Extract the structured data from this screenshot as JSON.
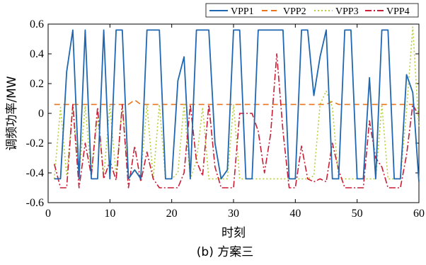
{
  "chart_data": {
    "type": "line",
    "xlabel": "时刻",
    "ylabel": "调频功率/MW",
    "caption": "(b) 方案三",
    "xlim": [
      0,
      60
    ],
    "ylim": [
      -0.6,
      0.6
    ],
    "xticks": [
      0,
      10,
      20,
      30,
      40,
      50,
      60
    ],
    "yticks": [
      -0.6,
      -0.4,
      -0.2,
      0,
      0.2,
      0.4,
      0.6
    ],
    "legend_position": "top",
    "x": [
      1,
      2,
      3,
      4,
      5,
      6,
      7,
      8,
      9,
      10,
      11,
      12,
      13,
      14,
      15,
      16,
      17,
      18,
      19,
      20,
      21,
      22,
      23,
      24,
      25,
      26,
      27,
      28,
      29,
      30,
      31,
      32,
      33,
      34,
      35,
      36,
      37,
      38,
      39,
      40,
      41,
      42,
      43,
      44,
      45,
      46,
      47,
      48,
      49,
      50,
      51,
      52,
      53,
      54,
      55,
      56,
      57,
      58,
      59,
      60
    ],
    "series": [
      {
        "name": "VPP1",
        "color": "#1f67b1",
        "dash": "",
        "values": [
          -0.44,
          -0.44,
          0.28,
          0.56,
          -0.44,
          0.56,
          -0.44,
          -0.44,
          0.56,
          -0.44,
          0.56,
          0.56,
          -0.44,
          -0.38,
          -0.44,
          0.56,
          0.56,
          0.56,
          -0.44,
          -0.44,
          0.22,
          0.38,
          -0.44,
          0.56,
          0.56,
          0.56,
          -0.2,
          -0.44,
          -0.38,
          0.56,
          0.56,
          -0.44,
          -0.44,
          0.56,
          0.56,
          0.56,
          0.56,
          0.56,
          -0.44,
          -0.44,
          0.56,
          0.56,
          0.12,
          0.38,
          0.56,
          -0.44,
          -0.44,
          0.56,
          0.56,
          -0.44,
          -0.44,
          0.24,
          -0.44,
          0.56,
          0.56,
          -0.44,
          -0.44,
          0.26,
          0.14,
          -0.46
        ]
      },
      {
        "name": "VPP2",
        "color": "#e8741d",
        "dash": "8,5",
        "values": [
          0.06,
          0.06,
          0.06,
          0.06,
          0.06,
          0.06,
          0.06,
          0.06,
          0.06,
          0.06,
          0.06,
          0.06,
          0.06,
          0.09,
          0.06,
          0.06,
          0.06,
          0.06,
          0.06,
          0.06,
          0.06,
          0.06,
          0.06,
          0.06,
          0.06,
          0.06,
          0.06,
          0.06,
          0.06,
          0.06,
          0.06,
          0.06,
          0.06,
          0.06,
          0.06,
          0.06,
          0.06,
          0.06,
          0.06,
          0.06,
          0.06,
          0.06,
          0.06,
          0.06,
          0.06,
          0.08,
          0.06,
          0.06,
          0.06,
          0.06,
          0.06,
          0.06,
          0.06,
          0.06,
          0.06,
          0.06,
          0.06,
          0.06,
          0.06,
          0.06
        ]
      },
      {
        "name": "VPP3",
        "color": "#b5cf38",
        "dash": "2,3",
        "values": [
          -0.44,
          0.04,
          -0.42,
          0.06,
          -0.42,
          0.05,
          -0.42,
          -0.02,
          -0.42,
          0.05,
          -0.42,
          0.06,
          -0.43,
          -0.38,
          -0.42,
          0.06,
          -0.44,
          0.06,
          -0.44,
          -0.44,
          -0.4,
          0.06,
          -0.44,
          -0.32,
          0.04,
          -0.44,
          -0.44,
          -0.44,
          -0.44,
          0.06,
          -0.44,
          -0.44,
          -0.44,
          -0.44,
          -0.44,
          -0.44,
          -0.44,
          -0.44,
          -0.44,
          -0.44,
          -0.44,
          -0.44,
          -0.42,
          0.06,
          0.15,
          0.04,
          -0.44,
          -0.44,
          -0.44,
          -0.44,
          -0.44,
          -0.44,
          -0.44,
          0.06,
          -0.44,
          -0.44,
          -0.44,
          0.02,
          0.58,
          -0.1
        ]
      },
      {
        "name": "VPP4",
        "color": "#c81d36",
        "dash": "9,3,2,3",
        "values": [
          -0.34,
          -0.5,
          -0.5,
          0.06,
          -0.5,
          -0.2,
          -0.42,
          0.04,
          -0.44,
          -0.32,
          -0.45,
          0.06,
          -0.5,
          -0.22,
          -0.46,
          -0.26,
          -0.44,
          -0.5,
          -0.5,
          -0.5,
          -0.5,
          -0.4,
          0.06,
          -0.32,
          -0.42,
          0.06,
          -0.36,
          -0.5,
          -0.5,
          -0.5,
          0.0,
          0.0,
          0.0,
          -0.12,
          -0.4,
          -0.14,
          0.4,
          -0.12,
          -0.5,
          -0.5,
          -0.22,
          -0.44,
          -0.46,
          -0.44,
          -0.46,
          -0.2,
          -0.38,
          -0.5,
          -0.5,
          -0.5,
          -0.5,
          -0.05,
          -0.3,
          -0.36,
          -0.5,
          -0.5,
          -0.5,
          -0.28,
          0.06,
          -0.02
        ]
      }
    ]
  }
}
